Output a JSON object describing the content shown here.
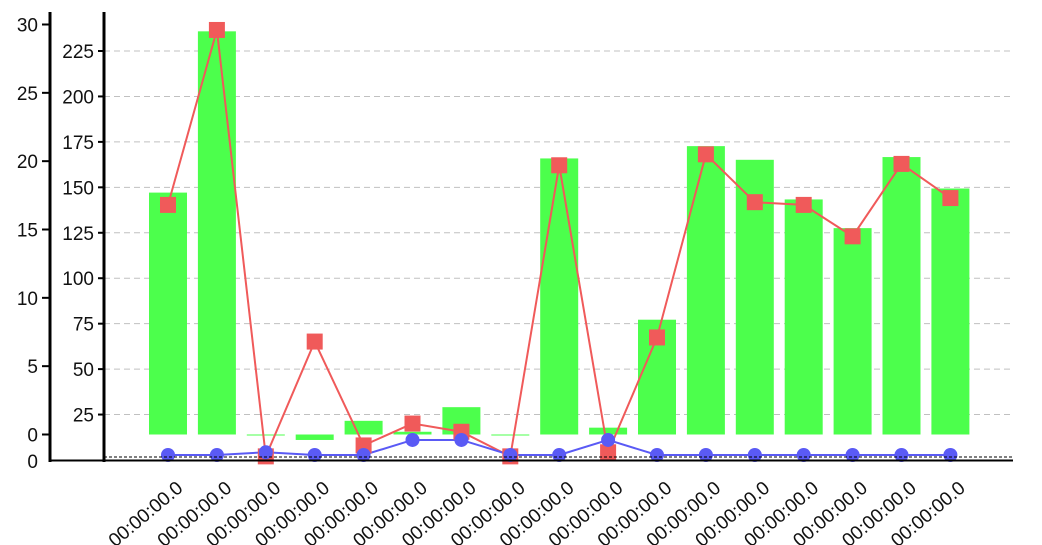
{
  "chart_data": {
    "type": "bar",
    "categories": [
      "00:00:00.0",
      "00:00:00.0",
      "00:00:00.0",
      "00:00:00.0",
      "00:00:00.0",
      "00:00:00.0",
      "00:00:00.0",
      "00:00:00.0",
      "00:00:00.0",
      "00:00:00.0",
      "00:00:00.0",
      "00:00:00.0",
      "00:00:00.0",
      "00:00:00.0",
      "00:00:00.0",
      "00:00:00.0",
      "00:00:00.0"
    ],
    "left_axis": {
      "ticks": [
        "0",
        "5",
        "10",
        "15",
        "20",
        "25",
        "30"
      ],
      "ylim": [
        -1.9,
        31.2
      ]
    },
    "right_axis": {
      "ticks": [
        "0",
        "25",
        "50",
        "75",
        "100",
        "125",
        "150",
        "175",
        "200",
        "225"
      ],
      "ylim": [
        0,
        240
      ]
    },
    "grid": true,
    "colors": {
      "bar": "#4cff4c",
      "line_squares": "#f05a5a",
      "line_circles": "#5a5af5",
      "axis": "#000000",
      "grid": "#c0c0c0"
    },
    "series": [
      {
        "type": "bar",
        "axis": "left",
        "color": "#4cff4c",
        "values": [
          17.7,
          29.5,
          0,
          -0.4,
          1.0,
          0.2,
          2.0,
          0,
          20.2,
          0.5,
          8.4,
          21.1,
          20.1,
          17.2,
          15.1,
          20.3,
          18.0
        ]
      },
      {
        "type": "line",
        "axis": "left",
        "marker": "square",
        "color": "#f05a5a",
        "values": [
          16.8,
          29.6,
          -1.6,
          6.8,
          -0.8,
          0.8,
          0.2,
          -1.6,
          19.7,
          -1.3,
          7.1,
          20.5,
          17.0,
          16.8,
          14.5,
          19.8,
          17.3
        ]
      },
      {
        "type": "line",
        "axis": "left",
        "marker": "circle",
        "color": "#5a5af5",
        "values": [
          -1.5,
          -1.5,
          -1.3,
          -1.5,
          -1.5,
          -0.4,
          -0.4,
          -1.5,
          -1.5,
          -0.4,
          -1.5,
          -1.5,
          -1.5,
          -1.5,
          -1.5,
          -1.5,
          -1.5
        ]
      }
    ]
  }
}
